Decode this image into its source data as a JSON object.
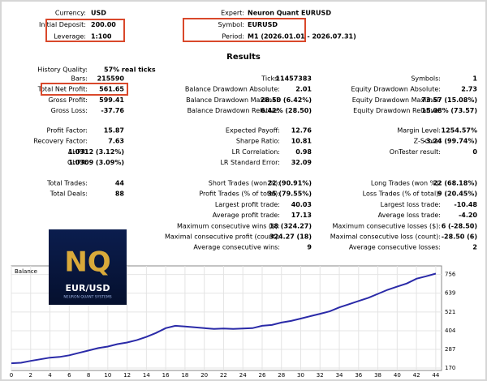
{
  "header": {
    "left": [
      [
        "Currency:",
        "USD"
      ],
      [
        "Initial Deposit:",
        "200.00"
      ],
      [
        "Leverage:",
        "1:100"
      ]
    ],
    "right": [
      [
        "Expert:",
        "Neuron Quant EURUSD"
      ],
      [
        "Symbol:",
        "EURUSD"
      ],
      [
        "Period:",
        "M1 (2026.01.01 - 2026.07.31)"
      ]
    ]
  },
  "results": {
    "title": "Results",
    "history_quality": [
      "History Quality:",
      "57% real ticks"
    ],
    "groups": [
      [
        {
          "left": [
            "Bars:",
            "215590"
          ],
          "middle": [
            "Ticks:",
            "11457383"
          ],
          "right": [
            "Symbols:",
            "1"
          ]
        },
        {
          "left": [
            "Total Net Profit:",
            "561.65"
          ],
          "middle": [
            "Balance Drawdown Absolute:",
            "2.01"
          ],
          "right": [
            "Equity Drawdown Absolute:",
            "2.73"
          ]
        },
        {
          "left": [
            "Gross Profit:",
            "599.41"
          ],
          "middle": [
            "Balance Drawdown Maximal:",
            "28.50 (6.42%)"
          ],
          "right": [
            "Equity Drawdown Maximal:",
            "73.57 (15.08%)"
          ]
        },
        {
          "left": [
            "Gross Loss:",
            "-37.76"
          ],
          "middle": [
            "Balance Drawdown Relative:",
            "6.42% (28.50)"
          ],
          "right": [
            "Equity Drawdown Relative:",
            "15.08% (73.57)"
          ]
        }
      ],
      [
        {
          "left": [
            "Profit Factor:",
            "15.87"
          ],
          "middle": [
            "Expected Payoff:",
            "12.76"
          ],
          "right": [
            "Margin Level:",
            "1254.57%"
          ]
        },
        {
          "left": [
            "Recovery Factor:",
            "7.63"
          ],
          "middle": [
            "Sharpe Ratio:",
            "10.81"
          ],
          "right": [
            "Z-Score:",
            "-3.24 (99.74%)"
          ]
        },
        {
          "left": [
            "AHPR:",
            "1.0312 (3.12%)"
          ],
          "middle": [
            "LR Correlation:",
            "0.98"
          ],
          "right": [
            "OnTester result:",
            "0"
          ]
        },
        {
          "left": [
            "GHPR:",
            "1.0309 (3.09%)"
          ],
          "middle": [
            "LR Standard Error:",
            "32.09"
          ]
        }
      ],
      [
        {
          "left": [
            "Total Trades:",
            "44"
          ],
          "middle": [
            "Short Trades (won %):",
            "22 (90.91%)"
          ],
          "right": [
            "Long Trades (won %):",
            "22 (68.18%)"
          ]
        },
        {
          "left": [
            "Total Deals:",
            "88"
          ],
          "middle": [
            "Profit Trades (% of total):",
            "35 (79.55%)"
          ],
          "right": [
            "Loss Trades (% of total):",
            "9 (20.45%)"
          ]
        },
        {
          "middle": [
            "Largest profit trade:",
            "40.03"
          ],
          "right": [
            "Largest loss trade:",
            "-10.48"
          ]
        },
        {
          "middle": [
            "Average profit trade:",
            "17.13"
          ],
          "right": [
            "Average loss trade:",
            "-4.20"
          ]
        },
        {
          "middle": [
            "Maximum consecutive wins ($):",
            "18 (324.27)"
          ],
          "right": [
            "Maximum consecutive losses ($):",
            "6 (-28.50)"
          ]
        },
        {
          "middle": [
            "Maximal consecutive profit (count):",
            "324.27 (18)"
          ],
          "right": [
            "Maximal consecutive loss (count):",
            "-28.50 (6)"
          ]
        },
        {
          "middle": [
            "Average consecutive wins:",
            "9"
          ],
          "right": [
            "Average consecutive losses:",
            "2"
          ]
        }
      ]
    ]
  },
  "logo": {
    "monogram": "NQ",
    "pair": "EUR/USD",
    "tagline": "NEURON QUANT SYSTEMS"
  },
  "chart_data": {
    "type": "line",
    "title": "Balance",
    "color": "#2a2aa8",
    "grid": true,
    "x": [
      0,
      1,
      2,
      3,
      4,
      5,
      6,
      7,
      8,
      9,
      10,
      11,
      12,
      13,
      14,
      15,
      16,
      17,
      18,
      19,
      20,
      21,
      22,
      23,
      24,
      25,
      26,
      27,
      28,
      29,
      30,
      31,
      32,
      33,
      34,
      35,
      36,
      37,
      38,
      39,
      40,
      41,
      42,
      43,
      44
    ],
    "values": [
      200,
      203,
      215,
      225,
      235,
      240,
      250,
      265,
      280,
      295,
      305,
      320,
      330,
      345,
      365,
      390,
      420,
      435,
      430,
      425,
      420,
      415,
      418,
      415,
      418,
      420,
      435,
      440,
      455,
      465,
      480,
      495,
      510,
      525,
      550,
      570,
      590,
      610,
      635,
      660,
      680,
      700,
      730,
      745,
      761.65
    ],
    "xlim": [
      0,
      44.6
    ],
    "xticks": [
      0,
      2,
      4,
      6,
      8,
      10,
      12,
      14,
      16,
      18,
      20,
      22,
      24,
      26,
      28,
      30,
      32,
      34,
      36,
      38,
      40,
      42,
      44
    ],
    "ylim": [
      155,
      810
    ],
    "yticks": [
      170,
      287,
      404,
      521,
      639,
      756
    ]
  }
}
